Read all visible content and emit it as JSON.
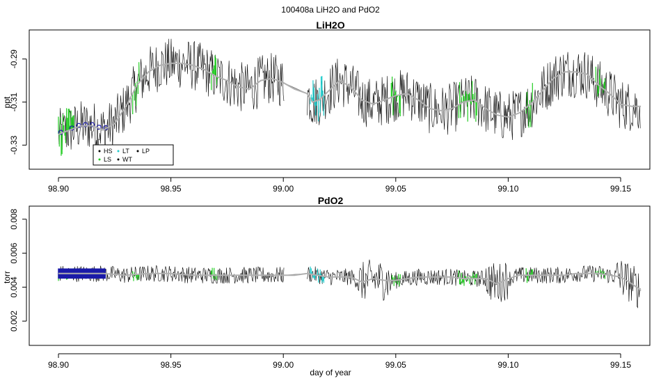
{
  "figure": {
    "title": "100408a   LiH2O and PdO2",
    "xlabel": "day of year"
  },
  "colors": {
    "trace": "#000000",
    "smooth": "#b0b0b0",
    "HS": "#000000",
    "LS": "#22cc22",
    "LT": "#22cccc",
    "WT": "#000000",
    "LP": "#000000",
    "markers": "#1a1aa8"
  },
  "chart_data": [
    {
      "type": "line",
      "title": "LiH2O",
      "ylabel": "ppt",
      "xlim": [
        98.887,
        99.163
      ],
      "ylim": [
        -0.3412,
        -0.2765
      ],
      "x_ticks": [
        "98.90",
        "98.95",
        "99.00",
        "99.05",
        "99.10",
        "99.15"
      ],
      "x_tick_values": [
        98.9,
        98.95,
        99.0,
        99.05,
        99.1,
        99.15
      ],
      "y_ticks": [
        "-0.33",
        "-0.31",
        "-0.29"
      ],
      "y_tick_values": [
        -0.33,
        -0.31,
        -0.29
      ],
      "legend": {
        "position": "bottom-left",
        "entries": [
          {
            "name": "HS",
            "color": "#000000"
          },
          {
            "name": "LT",
            "color": "#22cccc"
          },
          {
            "name": "LP",
            "color": "#000000"
          },
          {
            "name": "LS",
            "color": "#22cc22"
          },
          {
            "name": "WT",
            "color": "#000000"
          }
        ]
      },
      "series": [
        {
          "name": "smoothed",
          "x": [
            98.9,
            98.905,
            98.91,
            98.915,
            98.92,
            98.925,
            98.93,
            98.935,
            98.94,
            98.945,
            98.95,
            98.955,
            98.96,
            98.965,
            98.97,
            98.975,
            98.98,
            98.985,
            98.99,
            98.995,
            99.0,
            99.005,
            99.0105,
            99.013,
            99.016,
            99.02,
            99.025,
            99.03,
            99.035,
            99.04,
            99.045,
            99.05,
            99.055,
            99.06,
            99.065,
            99.07,
            99.075,
            99.08,
            99.085,
            99.09,
            99.095,
            99.1,
            99.105,
            99.11,
            99.115,
            99.12,
            99.125,
            99.13,
            99.135,
            99.14,
            99.145,
            99.15,
            99.155,
            99.159
          ],
          "y": [
            -0.325,
            -0.323,
            -0.321,
            -0.321,
            -0.323,
            -0.32,
            -0.312,
            -0.302,
            -0.296,
            -0.293,
            -0.292,
            -0.292,
            -0.293,
            -0.295,
            -0.298,
            -0.3,
            -0.303,
            -0.304,
            -0.3,
            -0.299,
            -0.301,
            -0.304,
            -0.306,
            -0.31,
            -0.309,
            -0.305,
            -0.3,
            -0.303,
            -0.309,
            -0.311,
            -0.309,
            -0.307,
            -0.306,
            -0.309,
            -0.313,
            -0.314,
            -0.313,
            -0.31,
            -0.309,
            -0.313,
            -0.316,
            -0.317,
            -0.315,
            -0.311,
            -0.305,
            -0.299,
            -0.296,
            -0.296,
            -0.297,
            -0.302,
            -0.306,
            -0.311,
            -0.312,
            -0.312
          ]
        }
      ],
      "noise_amplitude": 0.012
    },
    {
      "type": "line",
      "title": "PdO2",
      "ylabel": "torr",
      "xlim": [
        98.887,
        99.163
      ],
      "ylim": [
        0.00057,
        0.00877
      ],
      "x_ticks": [
        "98.90",
        "98.95",
        "99.00",
        "99.05",
        "99.10",
        "99.15"
      ],
      "x_tick_values": [
        98.9,
        98.95,
        99.0,
        99.05,
        99.1,
        99.15
      ],
      "y_ticks": [
        "0.002",
        "0.004",
        "0.006",
        "0.008"
      ],
      "y_tick_values": [
        0.002,
        0.004,
        0.006,
        0.008
      ],
      "series": [
        {
          "name": "smoothed",
          "x": [
            98.9,
            98.91,
            98.92,
            98.93,
            98.94,
            98.95,
            98.96,
            98.97,
            98.98,
            98.99,
            99.0,
            99.005,
            99.0105,
            99.015,
            99.02,
            99.025,
            99.03,
            99.035,
            99.04,
            99.045,
            99.05,
            99.055,
            99.06,
            99.065,
            99.07,
            99.075,
            99.08,
            99.085,
            99.09,
            99.095,
            99.1,
            99.105,
            99.11,
            99.115,
            99.12,
            99.125,
            99.13,
            99.135,
            99.14,
            99.145,
            99.15,
            99.155,
            99.159
          ],
          "y": [
            0.0048,
            0.0048,
            0.0048,
            0.0047,
            0.0048,
            0.0048,
            0.0047,
            0.0047,
            0.0047,
            0.0047,
            0.0047,
            0.0047,
            0.0048,
            0.0047,
            0.0046,
            0.0046,
            0.0046,
            0.0043,
            0.0045,
            0.0044,
            0.0044,
            0.0045,
            0.0046,
            0.0046,
            0.0046,
            0.0046,
            0.0045,
            0.0045,
            0.0045,
            0.0042,
            0.0045,
            0.0047,
            0.0047,
            0.0047,
            0.0047,
            0.0047,
            0.0048,
            0.0048,
            0.0048,
            0.0047,
            0.0046,
            0.0042,
            0.0038
          ]
        }
      ],
      "noise_amplitude": 0.0005
    }
  ]
}
